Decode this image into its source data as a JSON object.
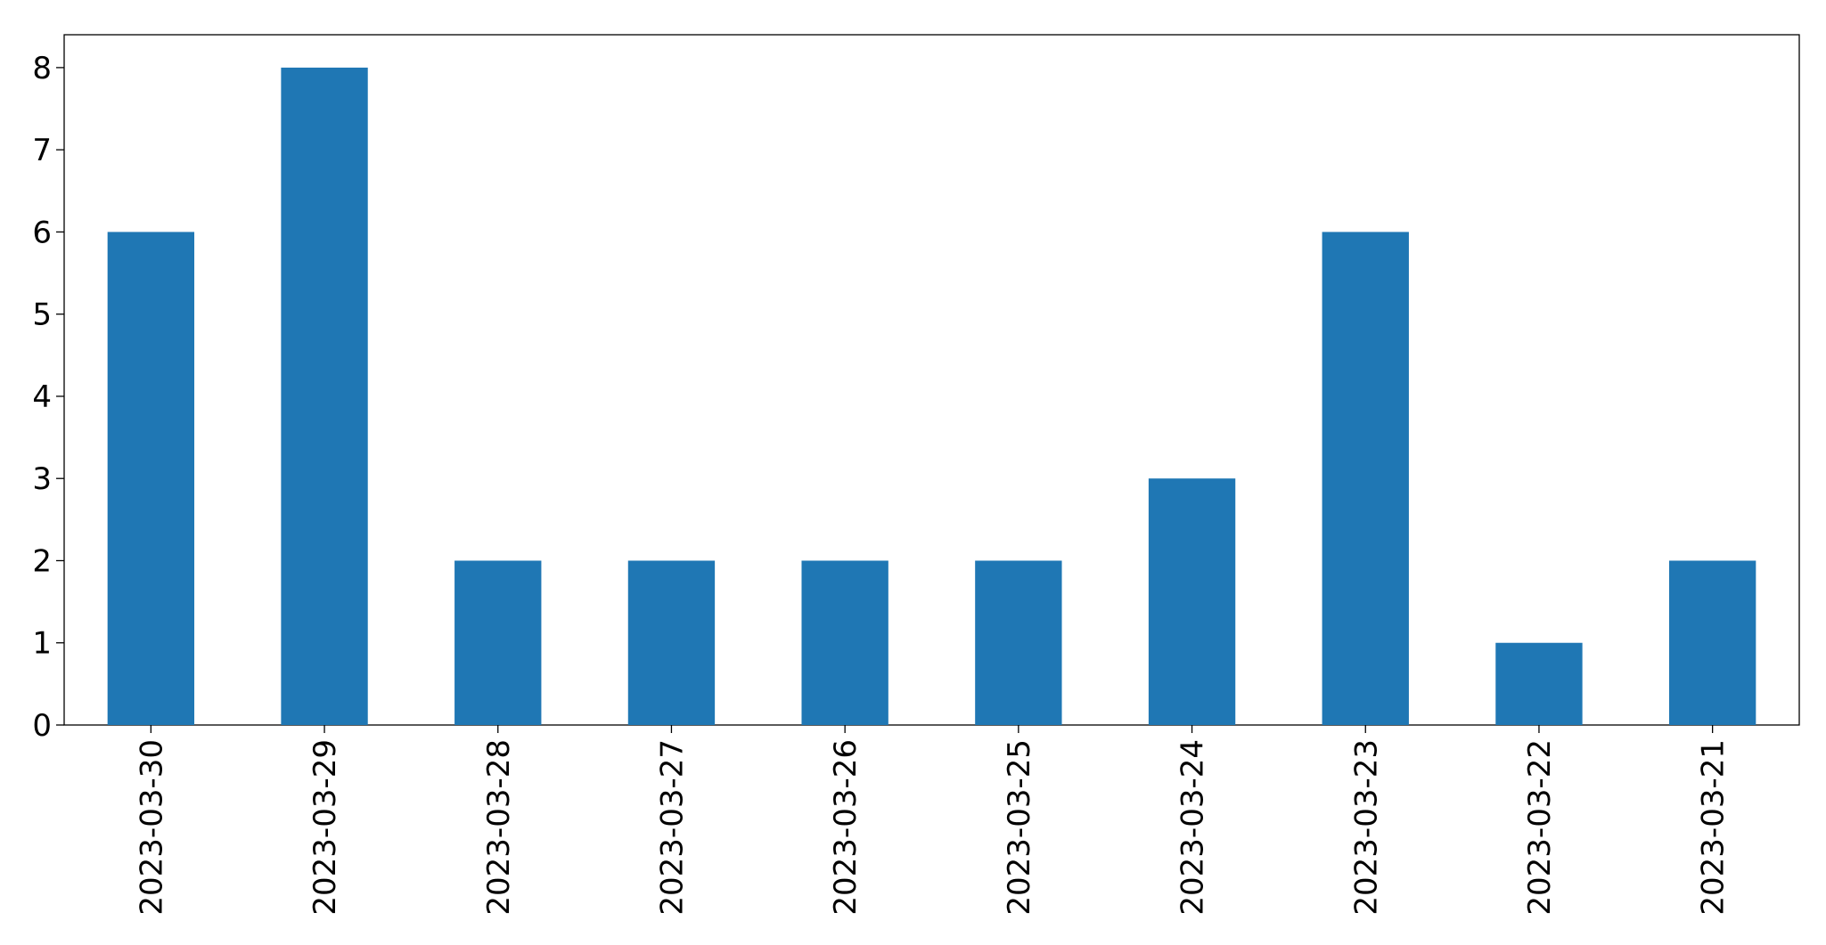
{
  "chart_data": {
    "type": "bar",
    "categories": [
      "2023-03-30",
      "2023-03-29",
      "2023-03-28",
      "2023-03-27",
      "2023-03-26",
      "2023-03-25",
      "2023-03-24",
      "2023-03-23",
      "2023-03-22",
      "2023-03-21"
    ],
    "values": [
      6,
      8,
      2,
      2,
      2,
      2,
      3,
      6,
      1,
      2
    ],
    "color": "#1f77b4",
    "ylim": [
      0,
      8.4
    ],
    "yticks": [
      0,
      1,
      2,
      3,
      4,
      5,
      6,
      7,
      8
    ],
    "grid": false
  }
}
